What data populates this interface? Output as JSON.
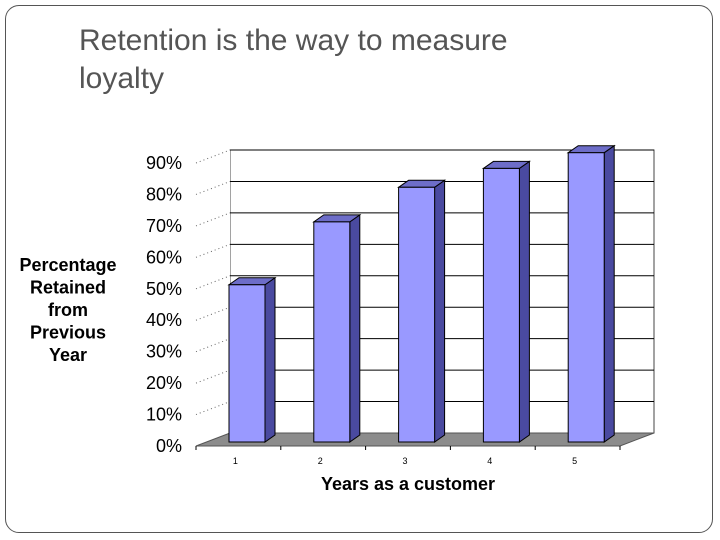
{
  "slide": {
    "title_line1": "Retention is the way to measure",
    "title_line2": "loyalty"
  },
  "colors": {
    "bar_front": "#9999ff",
    "bar_side": "#4a4aa0",
    "bar_top": "#6d6dc8",
    "floor": "#8c8c8c",
    "wall": "#ffffff",
    "gridline": "#000000"
  },
  "chart_data": {
    "type": "bar",
    "style": "3d-column",
    "categories": [
      "1",
      "2",
      "3",
      "4",
      "5"
    ],
    "values": [
      50,
      70,
      81,
      87,
      92
    ],
    "title": "",
    "xlabel": "Years as a customer",
    "ylabel_lines": [
      "Percentage",
      "Retained",
      "from",
      "Previous",
      "Year"
    ],
    "ylim": [
      0,
      90
    ],
    "y_ticks": [
      0,
      10,
      20,
      30,
      40,
      50,
      60,
      70,
      80,
      90
    ],
    "y_tick_labels": [
      "0%",
      "10%",
      "20%",
      "30%",
      "40%",
      "50%",
      "60%",
      "70%",
      "80%",
      "90%"
    ],
    "grid": true,
    "legend": "none"
  }
}
